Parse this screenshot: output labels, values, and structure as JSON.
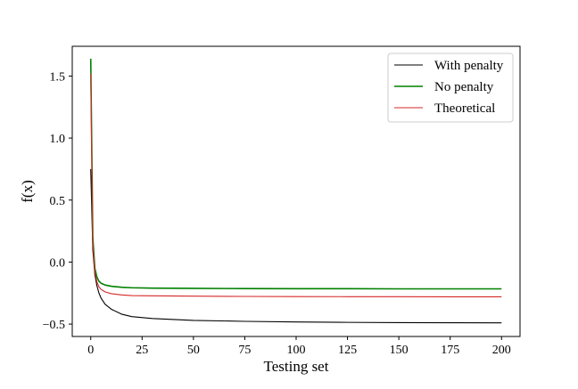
{
  "chart_data": {
    "type": "line",
    "xlabel": "Testing set",
    "ylabel": "f(x)",
    "xlim": [
      -9,
      209
    ],
    "ylim": [
      -0.6,
      1.74
    ],
    "xticks": [
      0,
      25,
      50,
      75,
      100,
      125,
      150,
      175,
      200
    ],
    "yticks": [
      -0.5,
      0.0,
      0.5,
      1.0,
      1.5
    ],
    "ytick_labels": [
      "−0.5",
      "0.0",
      "0.5",
      "1.0",
      "1.5"
    ],
    "grid": false,
    "legend_position": "top-right",
    "series": [
      {
        "name": "With penalty",
        "color": "#000000",
        "x": [
          0,
          1,
          2,
          3,
          4,
          5,
          7,
          10,
          15,
          20,
          30,
          50,
          75,
          100,
          125,
          150,
          175,
          200
        ],
        "y": [
          0.75,
          0.1,
          -0.1,
          -0.19,
          -0.25,
          -0.29,
          -0.34,
          -0.38,
          -0.42,
          -0.44,
          -0.455,
          -0.47,
          -0.478,
          -0.483,
          -0.486,
          -0.488,
          -0.489,
          -0.49
        ]
      },
      {
        "name": "No penalty",
        "color": "#008000",
        "x": [
          0,
          1,
          2,
          3,
          4,
          5,
          7,
          10,
          15,
          20,
          30,
          50,
          75,
          100,
          125,
          150,
          175,
          200
        ],
        "y": [
          1.64,
          0.2,
          -0.05,
          -0.12,
          -0.155,
          -0.17,
          -0.185,
          -0.195,
          -0.203,
          -0.207,
          -0.21,
          -0.212,
          -0.214,
          -0.215,
          -0.215,
          -0.216,
          -0.216,
          -0.216
        ]
      },
      {
        "name": "Theoretical",
        "color": "#d62728",
        "x": [
          0,
          1,
          2,
          3,
          4,
          5,
          7,
          10,
          15,
          20,
          30,
          50,
          75,
          100,
          125,
          150,
          175,
          200
        ],
        "y": [
          1.52,
          0.15,
          -0.08,
          -0.16,
          -0.2,
          -0.22,
          -0.24,
          -0.255,
          -0.265,
          -0.27,
          -0.272,
          -0.275,
          -0.277,
          -0.278,
          -0.279,
          -0.279,
          -0.28,
          -0.28
        ]
      }
    ]
  }
}
